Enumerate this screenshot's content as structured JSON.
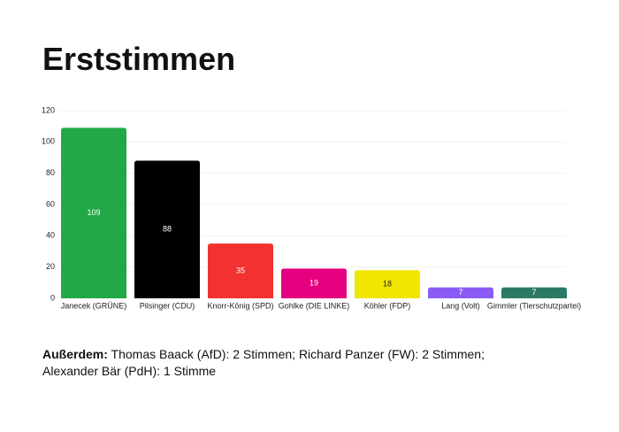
{
  "chart_data": {
    "type": "bar",
    "title": "Erststimmen",
    "categories": [
      "Janecek (GRÜNE)",
      "Pilsinger (CDU)",
      "Knorr-König (SPD)",
      "Gohlke (DIE LINKE)",
      "Köhler (FDP)",
      "Lang (Volt)",
      "Gimmler (Tierschutzpartei)"
    ],
    "values": [
      109,
      88,
      35,
      19,
      18,
      7,
      7
    ],
    "colors": [
      "#22a846",
      "#000000",
      "#f33131",
      "#e4007f",
      "#f0e600",
      "#8a5cf5",
      "#2b7a66"
    ],
    "ylim": [
      0,
      120
    ],
    "yticks": [
      0,
      20,
      40,
      60,
      80,
      100,
      120
    ],
    "grid": true,
    "footnote": {
      "label": "Außerdem:",
      "text": "Thomas Baack (AfD): 2 Stimmen; Richard Panzer (FW): 2 Stimmen; Alexander Bär (PdH): 1 Stimme"
    }
  }
}
